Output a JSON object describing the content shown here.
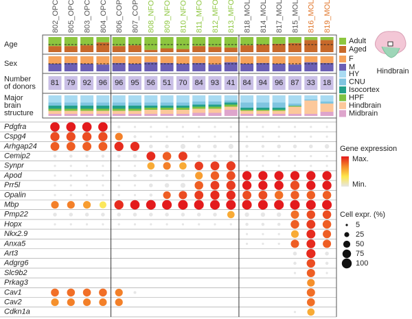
{
  "chart_data": {
    "type": "dotplot",
    "clusters": [
      "802_OPC",
      "805_OPC",
      "803_OPC",
      "804_OPC",
      "806_COP",
      "807_COP",
      "808_NFOL",
      "809_NFOL",
      "810_NFOL",
      "811_MFOL",
      "812_MFOL",
      "813_MFOL",
      "818_MOL",
      "814_MOL",
      "817_MOL",
      "815_MOL",
      "816_MOL",
      "819_MOL"
    ],
    "cluster_colors": [
      "#555555",
      "#555555",
      "#555555",
      "#555555",
      "#555555",
      "#555555",
      "#8dc63f",
      "#8dc63f",
      "#8dc63f",
      "#8dc63f",
      "#8dc63f",
      "#8dc63f",
      "#555555",
      "#555555",
      "#555555",
      "#555555",
      "#e0762b",
      "#e0762b"
    ],
    "group_breaks": [
      4,
      12
    ],
    "age": {
      "label_lines": [
        "Age"
      ],
      "reference_line": 50,
      "series": [
        {
          "name": "Adult",
          "color": "#8dc63f",
          "values": [
            60,
            60,
            55,
            35,
            60,
            55,
            85,
            75,
            80,
            60,
            65,
            70,
            55,
            50,
            45,
            40,
            20,
            20
          ]
        },
        {
          "name": "Aged",
          "color": "#c8692a",
          "values": [
            40,
            40,
            45,
            65,
            40,
            45,
            15,
            25,
            20,
            40,
            35,
            30,
            45,
            50,
            55,
            60,
            80,
            80
          ]
        }
      ]
    },
    "sex": {
      "label_lines": [
        "Sex"
      ],
      "reference_line": 50,
      "series": [
        {
          "name": "F",
          "color": "#f6a25a",
          "values": [
            50,
            45,
            50,
            55,
            45,
            50,
            40,
            45,
            50,
            45,
            55,
            40,
            50,
            45,
            50,
            55,
            40,
            45
          ]
        },
        {
          "name": "M",
          "color": "#6b5fb5",
          "values": [
            50,
            55,
            50,
            45,
            55,
            50,
            60,
            55,
            50,
            55,
            45,
            60,
            50,
            55,
            50,
            45,
            60,
            55
          ]
        }
      ]
    },
    "donors": {
      "label_lines": [
        "Number",
        "of donors"
      ],
      "color": "#c9bfe6",
      "values": [
        81,
        79,
        92,
        96,
        96,
        95,
        56,
        51,
        70,
        84,
        93,
        41,
        84,
        94,
        96,
        87,
        33,
        18
      ]
    },
    "structure": {
      "label_lines": [
        "Major",
        "brain",
        "structure"
      ],
      "series": [
        {
          "name": "HY",
          "color": "#a9dbf2",
          "values": [
            35,
            35,
            35,
            35,
            35,
            35,
            35,
            35,
            35,
            30,
            30,
            25,
            35,
            35,
            35,
            40,
            20,
            30
          ]
        },
        {
          "name": "CNU",
          "color": "#7fc4e0",
          "values": [
            15,
            15,
            15,
            15,
            15,
            15,
            15,
            15,
            15,
            15,
            15,
            10,
            25,
            25,
            25,
            10,
            5,
            10
          ]
        },
        {
          "name": "Isocortex",
          "color": "#22a08a",
          "values": [
            15,
            15,
            15,
            15,
            15,
            15,
            10,
            10,
            10,
            10,
            10,
            10,
            10,
            10,
            10,
            2,
            0,
            0
          ]
        },
        {
          "name": "HPF",
          "color": "#7fc241",
          "values": [
            10,
            10,
            10,
            10,
            10,
            10,
            10,
            10,
            10,
            10,
            10,
            10,
            5,
            5,
            5,
            3,
            0,
            0
          ]
        },
        {
          "name": "Hindbrain",
          "color": "#fcc89b",
          "values": [
            15,
            15,
            15,
            15,
            15,
            15,
            20,
            20,
            20,
            20,
            20,
            15,
            15,
            15,
            15,
            35,
            65,
            40
          ]
        },
        {
          "name": "Midbrain",
          "color": "#dea5cc",
          "values": [
            10,
            10,
            10,
            10,
            10,
            10,
            10,
            10,
            10,
            15,
            15,
            30,
            10,
            10,
            10,
            10,
            10,
            20
          ]
        }
      ]
    },
    "genes": [
      "Pdgfra",
      "Cspg4",
      "Arhgap24",
      "Cemip2",
      "Synpr",
      "Apod",
      "Prr5l",
      "Opalin",
      "Mbp",
      "Pmp22",
      "Hopx",
      "Nkx2.9",
      "Anxa5",
      "Art3",
      "Adgrg6",
      "Slc9b2",
      "Prkag3",
      "Cav1",
      "Cav2",
      "Cdkn1a"
    ],
    "size": [
      [
        90,
        90,
        90,
        90,
        8,
        5,
        5,
        5,
        5,
        5,
        5,
        5,
        5,
        5,
        5,
        5,
        5,
        5
      ],
      [
        85,
        85,
        85,
        85,
        60,
        8,
        5,
        5,
        5,
        5,
        5,
        5,
        5,
        5,
        5,
        5,
        5,
        5
      ],
      [
        80,
        80,
        80,
        80,
        85,
        85,
        15,
        15,
        25,
        15,
        15,
        25,
        10,
        10,
        15,
        15,
        15,
        20
      ],
      [
        10,
        10,
        10,
        10,
        10,
        15,
        80,
        75,
        80,
        10,
        10,
        10,
        5,
        5,
        5,
        5,
        5,
        5
      ],
      [
        5,
        5,
        5,
        5,
        5,
        5,
        55,
        60,
        55,
        75,
        80,
        85,
        5,
        5,
        5,
        5,
        5,
        5
      ],
      [
        5,
        5,
        5,
        5,
        5,
        10,
        10,
        10,
        15,
        60,
        75,
        80,
        85,
        85,
        85,
        85,
        85,
        85
      ],
      [
        5,
        5,
        5,
        5,
        5,
        5,
        15,
        20,
        25,
        75,
        80,
        85,
        85,
        85,
        85,
        85,
        85,
        85
      ],
      [
        5,
        5,
        5,
        5,
        5,
        5,
        10,
        60,
        70,
        80,
        85,
        85,
        80,
        80,
        75,
        75,
        75,
        75
      ],
      [
        60,
        60,
        60,
        50,
        85,
        90,
        95,
        95,
        95,
        95,
        95,
        95,
        95,
        95,
        95,
        95,
        95,
        95
      ],
      [
        15,
        15,
        15,
        15,
        15,
        15,
        15,
        15,
        15,
        15,
        15,
        55,
        20,
        20,
        20,
        70,
        75,
        75
      ],
      [
        5,
        5,
        5,
        5,
        5,
        5,
        5,
        5,
        5,
        5,
        5,
        5,
        10,
        10,
        10,
        75,
        80,
        75
      ],
      [
        0,
        0,
        0,
        0,
        0,
        0,
        0,
        0,
        0,
        0,
        0,
        0,
        5,
        5,
        5,
        60,
        80,
        70
      ],
      [
        0,
        0,
        0,
        0,
        0,
        0,
        0,
        0,
        0,
        0,
        0,
        0,
        5,
        5,
        5,
        70,
        80,
        70
      ],
      [
        0,
        0,
        0,
        0,
        0,
        0,
        0,
        0,
        0,
        0,
        0,
        0,
        0,
        0,
        0,
        15,
        85,
        15
      ],
      [
        0,
        0,
        0,
        0,
        0,
        0,
        0,
        0,
        0,
        0,
        0,
        0,
        0,
        0,
        0,
        10,
        75,
        10
      ],
      [
        0,
        0,
        0,
        0,
        0,
        0,
        0,
        0,
        0,
        0,
        0,
        0,
        0,
        0,
        0,
        5,
        70,
        5
      ],
      [
        0,
        0,
        0,
        0,
        0,
        0,
        0,
        0,
        0,
        0,
        0,
        0,
        0,
        0,
        0,
        0,
        60,
        0
      ],
      [
        65,
        65,
        65,
        65,
        60,
        8,
        0,
        0,
        0,
        0,
        0,
        0,
        0,
        0,
        0,
        0,
        70,
        0
      ],
      [
        60,
        60,
        60,
        60,
        60,
        0,
        0,
        0,
        0,
        0,
        0,
        0,
        0,
        0,
        0,
        0,
        65,
        0
      ],
      [
        0,
        0,
        0,
        0,
        0,
        0,
        0,
        0,
        0,
        0,
        0,
        0,
        0,
        0,
        0,
        5,
        55,
        0
      ]
    ],
    "expression": [
      [
        1,
        1,
        1,
        1,
        0,
        0,
        0,
        0,
        0,
        0,
        0,
        0,
        0,
        0,
        0,
        0,
        0,
        0
      ],
      [
        0.85,
        0.85,
        0.85,
        0.85,
        0.7,
        0,
        0,
        0,
        0,
        0,
        0,
        0,
        0,
        0,
        0,
        0,
        0,
        0
      ],
      [
        0.8,
        0.8,
        0.8,
        0.8,
        0.95,
        0.95,
        0,
        0,
        0,
        0,
        0,
        0,
        0,
        0,
        0,
        0,
        0,
        0
      ],
      [
        0,
        0,
        0,
        0,
        0,
        0,
        0.95,
        0.8,
        0.9,
        0,
        0,
        0,
        0,
        0,
        0,
        0,
        0,
        0
      ],
      [
        0,
        0,
        0,
        0,
        0,
        0,
        0.55,
        0.7,
        0.55,
        0.9,
        0.9,
        0.9,
        0,
        0,
        0,
        0,
        0,
        0
      ],
      [
        0,
        0,
        0,
        0,
        0,
        0,
        0,
        0,
        0,
        0.6,
        0.8,
        0.85,
        1,
        1,
        1,
        1,
        1,
        1
      ],
      [
        0,
        0,
        0,
        0,
        0,
        0,
        0,
        0,
        0,
        0.8,
        0.9,
        0.9,
        1,
        1,
        1,
        0.85,
        1,
        1
      ],
      [
        0,
        0,
        0,
        0,
        0,
        0,
        0,
        0.8,
        0.85,
        0.9,
        0.95,
        0.95,
        0.85,
        0.85,
        0.75,
        0.8,
        0.8,
        0.8
      ],
      [
        0.7,
        0.7,
        0.6,
        0.3,
        0.95,
        1,
        1,
        1,
        1,
        1,
        1,
        1,
        1,
        1,
        1,
        1,
        1,
        1
      ],
      [
        0,
        0,
        0,
        0,
        0,
        0,
        0,
        0,
        0,
        0,
        0,
        0.55,
        0,
        0,
        0,
        0.75,
        0.85,
        0.85
      ],
      [
        0,
        0,
        0,
        0,
        0,
        0,
        0,
        0,
        0,
        0,
        0,
        0,
        0,
        0,
        0,
        0.8,
        0.9,
        0.8
      ],
      [
        0,
        0,
        0,
        0,
        0,
        0,
        0,
        0,
        0,
        0,
        0,
        0,
        0,
        0,
        0,
        0.55,
        0.95,
        0.8
      ],
      [
        0,
        0,
        0,
        0,
        0,
        0,
        0,
        0,
        0,
        0,
        0,
        0,
        0,
        0,
        0,
        0.8,
        0.95,
        0.8
      ],
      [
        0,
        0,
        0,
        0,
        0,
        0,
        0,
        0,
        0,
        0,
        0,
        0,
        0,
        0,
        0,
        0,
        0.95,
        0
      ],
      [
        0,
        0,
        0,
        0,
        0,
        0,
        0,
        0,
        0,
        0,
        0,
        0,
        0,
        0,
        0,
        0,
        0.85,
        0
      ],
      [
        0,
        0,
        0,
        0,
        0,
        0,
        0,
        0,
        0,
        0,
        0,
        0,
        0,
        0,
        0,
        0,
        0.8,
        0
      ],
      [
        0,
        0,
        0,
        0,
        0,
        0,
        0,
        0,
        0,
        0,
        0,
        0,
        0,
        0,
        0,
        0,
        0.65,
        0
      ],
      [
        0.75,
        0.75,
        0.75,
        0.75,
        0.7,
        0,
        0,
        0,
        0,
        0,
        0,
        0,
        0,
        0,
        0,
        0,
        0.75,
        0
      ],
      [
        0.65,
        0.7,
        0.7,
        0.7,
        0.7,
        0,
        0,
        0,
        0,
        0,
        0,
        0,
        0,
        0,
        0,
        0,
        0.75,
        0
      ],
      [
        0,
        0,
        0,
        0,
        0,
        0,
        0,
        0,
        0,
        0,
        0,
        0,
        0,
        0,
        0,
        0,
        0.55,
        0
      ]
    ],
    "color_scale": {
      "title": "Gene expression",
      "colors": [
        "#e6e6e6",
        "#fde74c",
        "#f58b2a",
        "#e31a1c"
      ],
      "ticks": [
        {
          "value": 1,
          "label": "Max."
        },
        {
          "value": 0,
          "label": "Min."
        }
      ]
    },
    "size_legend": {
      "title": "Cell expr. (%)",
      "values": [
        5,
        25,
        50,
        75,
        100
      ]
    },
    "icon_label": "Hindbrain"
  }
}
